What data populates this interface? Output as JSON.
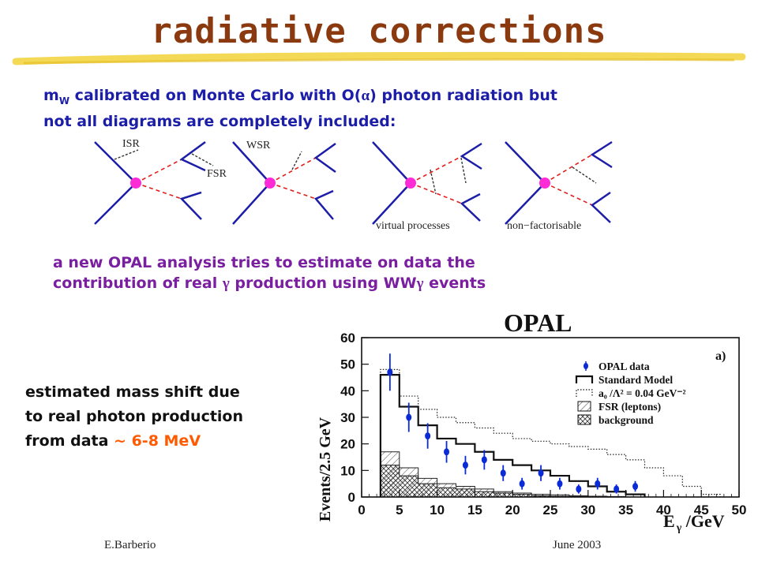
{
  "slide": {
    "title": "radiative corrections",
    "intro_pre": "m",
    "intro_sub": "W",
    "intro_rest1": " calibrated on Monte Carlo with O(",
    "intro_alpha": "α",
    "intro_rest2": ") photon radiation but",
    "intro_line2": "not all diagrams are completely included:",
    "opal_line1": "a new OPAL analysis tries to estimate on data the",
    "opal_line2_a": "contribution of real ",
    "opal_gamma": "γ",
    "opal_line2_b": " production using WW",
    "opal_line2_c": " events",
    "shift_line1": "estimated mass shift due",
    "shift_line2": "to real photon production",
    "shift_line3_a": "from data ",
    "shift_value": "~ 6-8 MeV",
    "footer_author": "E.Barberio",
    "footer_date": "June 2003"
  },
  "diagrams": {
    "isr": "ISR",
    "fsr": "FSR",
    "wsr": "WSR",
    "virtual": "virtual processes",
    "nonfact": "non−factorisable"
  },
  "colors": {
    "title": "#8b3a10",
    "text_blue": "#1c1ea8",
    "text_purple": "#7a1fa0",
    "highlight": "#ff5a00",
    "vertex": "#ff2bd6",
    "data": "#0a2bd6"
  },
  "chart_data": {
    "type": "bar",
    "title": "OPAL",
    "panel_label": "a)",
    "ylabel": "Events/2.5 GeV",
    "xlabel_main": "E",
    "xlabel_sub": "γ",
    "xlabel_unit": " /GeV",
    "xlim": [
      0,
      50
    ],
    "ylim": [
      0,
      60
    ],
    "xticks": [
      0,
      5,
      10,
      15,
      20,
      25,
      30,
      35,
      40,
      45,
      50
    ],
    "yticks": [
      0,
      10,
      20,
      30,
      40,
      50,
      60
    ],
    "bin_edges": [
      2.5,
      5,
      7.5,
      10,
      12.5,
      15,
      17.5,
      20,
      22.5,
      25,
      27.5,
      30,
      32.5,
      35,
      37.5
    ],
    "legend": [
      {
        "label": "OPAL data",
        "kind": "data"
      },
      {
        "label": "Standard Model",
        "kind": "line"
      },
      {
        "label": "a₀ /Λ² = 0.04 GeV⁻²",
        "kind": "dotted"
      },
      {
        "label": "FSR (leptons)",
        "kind": "hatch"
      },
      {
        "label": "background",
        "kind": "crosshatch"
      }
    ],
    "series": [
      {
        "name": "OPAL data",
        "x": [
          3.75,
          6.25,
          8.75,
          11.25,
          13.75,
          16.25,
          18.75,
          21.25,
          23.75,
          26.25,
          28.75,
          31.25,
          33.75,
          36.25
        ],
        "y": [
          47,
          30,
          23,
          17,
          12,
          14,
          9,
          5,
          9,
          5,
          3,
          5,
          3,
          4
        ],
        "err": [
          7,
          5.5,
          4.8,
          4.1,
          3.5,
          3.7,
          3,
          2.2,
          3,
          2.2,
          1.7,
          2.2,
          1.7,
          2
        ]
      },
      {
        "name": "Standard Model",
        "values": [
          46,
          34,
          27,
          22,
          20,
          17,
          14,
          12,
          10,
          8,
          6,
          4,
          2,
          1
        ]
      },
      {
        "name": "a₀ /Λ² = 0.04 GeV⁻²",
        "values": [
          48,
          38,
          33,
          30,
          28,
          26,
          24,
          22,
          21,
          20,
          19,
          18,
          16,
          14
        ],
        "extra_x": [
          37.5,
          40,
          42.5,
          45
        ],
        "extra_values": [
          11,
          8,
          4,
          1
        ]
      },
      {
        "name": "FSR (leptons)",
        "values": [
          17,
          11,
          7,
          5,
          4,
          3,
          2,
          1.5,
          1,
          0.8,
          0.5,
          0.3,
          0.2,
          0
        ]
      },
      {
        "name": "background",
        "values": [
          12,
          8,
          5,
          3.5,
          3,
          2,
          1.5,
          1,
          0.5,
          0.3,
          0.2,
          0.1,
          0,
          0
        ]
      }
    ]
  }
}
